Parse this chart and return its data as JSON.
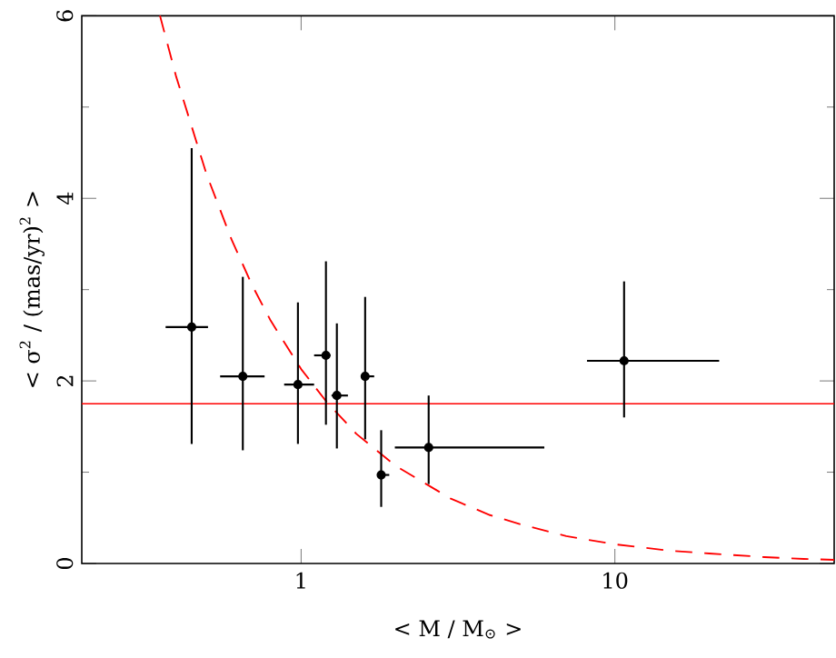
{
  "chart_data": {
    "type": "scatter",
    "log": "x",
    "xlabel": "< M / M$_{⊙}$ >",
    "ylabel": "< σ$^{2}$ / (mas/yr)$^{2}$ >",
    "xlim": [
      0.2,
      50
    ],
    "ylim": [
      0,
      6
    ],
    "xticks": [
      1,
      10
    ],
    "yticks": [
      0,
      2,
      4,
      6
    ],
    "ref_lines": [
      {
        "axis": "y",
        "value": 1.75,
        "color": "#ff0000"
      }
    ],
    "series": [
      {
        "type": "line",
        "color": "#ff0000",
        "line_style": "dashed",
        "marker": "none",
        "x": [
          0.355,
          0.4,
          0.5,
          0.6,
          0.7,
          0.8,
          1,
          1.2,
          1.5,
          2,
          3,
          4,
          5,
          7,
          10,
          15,
          20,
          30,
          40,
          50
        ],
        "values": [
          6.0,
          5.33,
          4.26,
          3.55,
          3.04,
          2.66,
          2.13,
          1.78,
          1.42,
          1.07,
          0.71,
          0.53,
          0.43,
          0.3,
          0.21,
          0.14,
          0.11,
          0.07,
          0.05,
          0.04
        ]
      },
      {
        "color": "#000000",
        "marker": "circle",
        "x": [
          0.448,
          0.652,
          0.977,
          1.2,
          1.3,
          1.6,
          1.8,
          2.55,
          10.7
        ],
        "values": [
          2.59,
          2.05,
          1.96,
          2.28,
          1.84,
          2.05,
          0.97,
          1.27,
          2.22
        ],
        "errors": [
          [
            1.31,
            4.55
          ],
          [
            1.24,
            3.14
          ],
          [
            1.31,
            2.86
          ],
          [
            1.52,
            3.31
          ],
          [
            1.26,
            2.63
          ],
          [
            1.36,
            2.92
          ],
          [
            0.62,
            1.46
          ],
          [
            0.87,
            1.84
          ],
          [
            1.6,
            3.09
          ]
        ],
        "xerrors": [
          [
            0.37,
            0.505
          ],
          [
            0.552,
            0.765
          ],
          [
            0.883,
            1.1
          ],
          [
            1.1,
            1.24
          ],
          [
            1.25,
            1.41
          ],
          [
            1.55,
            1.71
          ],
          [
            1.75,
            1.91
          ],
          [
            1.99,
            5.96
          ],
          [
            8.15,
            21.5
          ]
        ]
      }
    ]
  }
}
